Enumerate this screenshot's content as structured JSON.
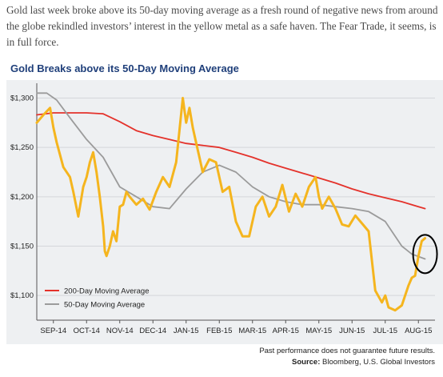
{
  "intro_text": "Gold last week broke above its 50-day moving average as a fresh round of negative news from around the globe rekindled investors’ interest in the yellow metal as a safe haven. The Fear Trade, it seems, is in full force.",
  "footnote": {
    "disclaimer": "Past performance does not guarantee future results.",
    "source_label": "Source:",
    "source_text": " Bloomberg, U.S. Global Investors"
  },
  "colors": {
    "gold": "#f5b51e",
    "ma200": "#e4322b",
    "ma50": "#9b9b9b",
    "title": "#1f3f7a",
    "panel_bg": "#eef0f2",
    "circle": "#000000"
  },
  "chart_data": {
    "type": "line",
    "title": "Gold Breaks above its 50-Day Moving Average",
    "xlabel": "",
    "ylabel": "",
    "x_range": [
      0,
      12
    ],
    "ylim": [
      1075,
      1315
    ],
    "y_ticks": [
      1100,
      1150,
      1200,
      1250,
      1300
    ],
    "y_tick_labels": [
      "$1,100",
      "$1,150",
      "$1,200",
      "$1,250",
      "$1,300"
    ],
    "grid": "horizontal",
    "x_tick_positions": [
      0.5,
      1.5,
      2.5,
      3.5,
      4.5,
      5.5,
      6.5,
      7.5,
      8.5,
      9.5,
      10.5,
      11.5
    ],
    "x_tick_labels": [
      "SEP-14",
      "OCT-14",
      "NOV-14",
      "DEC-14",
      "JAN-15",
      "FEB-15",
      "MAR-15",
      "APR-15",
      "MAY-15",
      "JUN-15",
      "JUL-15",
      "AUG-15"
    ],
    "legend": {
      "position": "bottom-left",
      "entries": [
        "200-Day Moving Average",
        "50-Day Moving Average"
      ]
    },
    "annotation": {
      "type": "circle",
      "x": 11.7,
      "y": 1142
    },
    "series": [
      {
        "key": "gold",
        "x": [
          0.0,
          0.2,
          0.4,
          0.5,
          0.6,
          0.8,
          1.0,
          1.1,
          1.25,
          1.4,
          1.5,
          1.6,
          1.7,
          1.8,
          1.9,
          2.0,
          2.05,
          2.1,
          2.2,
          2.3,
          2.4,
          2.5,
          2.6,
          2.7,
          2.8,
          3.0,
          3.2,
          3.4,
          3.6,
          3.8,
          4.0,
          4.2,
          4.4,
          4.5,
          4.6,
          4.7,
          4.8,
          4.9,
          5.0,
          5.2,
          5.4,
          5.6,
          5.8,
          6.0,
          6.2,
          6.4,
          6.6,
          6.8,
          7.0,
          7.2,
          7.4,
          7.6,
          7.8,
          8.0,
          8.2,
          8.4,
          8.5,
          8.6,
          8.8,
          9.0,
          9.2,
          9.4,
          9.6,
          9.8,
          10.0,
          10.2,
          10.4,
          10.5,
          10.6,
          10.8,
          11.0,
          11.2,
          11.3,
          11.4,
          11.5,
          11.6,
          11.7
        ],
        "y": [
          1275,
          1283,
          1290,
          1270,
          1255,
          1230,
          1220,
          1205,
          1180,
          1210,
          1220,
          1235,
          1245,
          1225,
          1200,
          1170,
          1145,
          1140,
          1150,
          1165,
          1155,
          1190,
          1192,
          1205,
          1200,
          1192,
          1198,
          1187,
          1205,
          1220,
          1210,
          1235,
          1300,
          1275,
          1290,
          1270,
          1255,
          1240,
          1225,
          1238,
          1235,
          1205,
          1210,
          1175,
          1160,
          1160,
          1190,
          1200,
          1180,
          1190,
          1212,
          1185,
          1203,
          1190,
          1210,
          1220,
          1200,
          1188,
          1200,
          1188,
          1172,
          1170,
          1181,
          1173,
          1165,
          1105,
          1093,
          1100,
          1088,
          1085,
          1090,
          1110,
          1118,
          1120,
          1140,
          1155,
          1158
        ]
      },
      {
        "key": "ma200",
        "name": "200-Day Moving Average",
        "x": [
          0,
          0.5,
          1,
          1.5,
          2,
          2.5,
          3,
          3.5,
          4,
          4.5,
          5,
          5.5,
          6,
          6.5,
          7,
          7.5,
          8,
          8.5,
          9,
          9.5,
          10,
          10.5,
          11,
          11.5,
          11.7
        ],
        "y": [
          1283,
          1285,
          1285,
          1285,
          1284,
          1276,
          1267,
          1262,
          1258,
          1254,
          1252,
          1250,
          1245,
          1240,
          1234,
          1229,
          1224,
          1219,
          1214,
          1208,
          1203,
          1199,
          1195,
          1190,
          1188
        ]
      },
      {
        "key": "ma50",
        "name": "50-Day Moving Average",
        "x": [
          0,
          0.3,
          0.6,
          1.0,
          1.5,
          2.0,
          2.5,
          3.0,
          3.5,
          4.0,
          4.5,
          5.0,
          5.5,
          6.0,
          6.5,
          7.0,
          7.5,
          8.0,
          8.5,
          9.0,
          9.5,
          10.0,
          10.5,
          11.0,
          11.3,
          11.7
        ],
        "y": [
          1305,
          1305,
          1298,
          1280,
          1258,
          1240,
          1210,
          1200,
          1190,
          1188,
          1208,
          1225,
          1232,
          1225,
          1210,
          1200,
          1195,
          1192,
          1192,
          1190,
          1188,
          1185,
          1175,
          1150,
          1142,
          1137
        ]
      }
    ]
  }
}
